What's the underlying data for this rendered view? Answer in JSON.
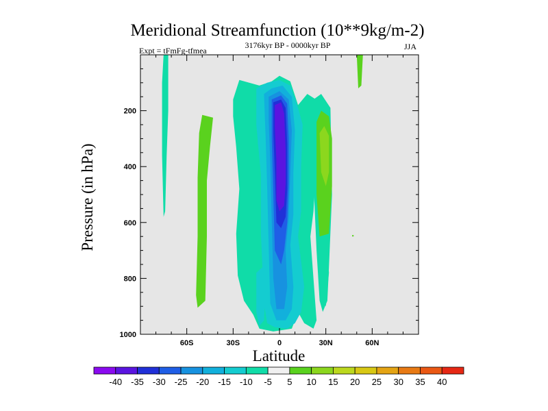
{
  "chart_data": {
    "type": "heatmap",
    "title": "Meridional Streamfunction (10**9kg/m-2)",
    "subtitle_left": "Expt = tFmFg-tfmea",
    "subtitle_center": "3176kyr BP - 0000kyr BP",
    "subtitle_right": "JJA",
    "xlabel": "Latitude",
    "ylabel": "Pressure (in hPa)",
    "xlim": [
      -90,
      90
    ],
    "ylim": [
      1000,
      0
    ],
    "x_ticks": [
      {
        "value": -60,
        "label": "60S"
      },
      {
        "value": -30,
        "label": "30S"
      },
      {
        "value": 0,
        "label": "0"
      },
      {
        "value": 30,
        "label": "30N"
      },
      {
        "value": 60,
        "label": "60N"
      }
    ],
    "y_ticks": [
      {
        "value": 200,
        "label": "200"
      },
      {
        "value": 400,
        "label": "400"
      },
      {
        "value": 600,
        "label": "600"
      },
      {
        "value": 800,
        "label": "800"
      },
      {
        "value": 1000,
        "label": "1000"
      }
    ],
    "background_color": "#e6e6e6",
    "colorbar": {
      "levels": [
        -40,
        -35,
        -30,
        -25,
        -20,
        -15,
        -10,
        -5,
        5,
        10,
        15,
        20,
        25,
        30,
        35,
        40
      ],
      "labels": [
        "-40",
        "-35",
        "-30",
        "-25",
        "-20",
        "-15",
        "-10",
        "-5",
        "5",
        "10",
        "15",
        "20",
        "25",
        "30",
        "35",
        "40"
      ],
      "colors": [
        "#8a0af0",
        "#5a14e0",
        "#2030d8",
        "#1f5ee6",
        "#1792e0",
        "#12b0dc",
        "#14ccd0",
        "#10dca8",
        "#f0f0f0",
        "#5ad21e",
        "#8cd71e",
        "#bcd81e",
        "#d8c814",
        "#e4a414",
        "#e87a14",
        "#ea5814",
        "#e62814"
      ]
    },
    "regions": [
      {
        "name": "sh-highlat-teal",
        "fill": 7,
        "points": [
          [
            -75,
            0
          ],
          [
            -72,
            0
          ],
          [
            -72,
            200
          ],
          [
            -73,
            360
          ],
          [
            -74,
            560
          ],
          [
            -75,
            580
          ],
          [
            -76,
            360
          ],
          [
            -76,
            100
          ]
        ]
      },
      {
        "name": "sh-midlat-green",
        "fill": 9,
        "points": [
          [
            -50,
            215
          ],
          [
            -43,
            225
          ],
          [
            -45,
            330
          ],
          [
            -47,
            450
          ],
          [
            -47,
            650
          ],
          [
            -48,
            880
          ],
          [
            -53,
            905
          ],
          [
            -54,
            860
          ],
          [
            -53,
            650
          ],
          [
            -53,
            440
          ],
          [
            -52,
            280
          ]
        ]
      },
      {
        "name": "tropical-teal-band",
        "fill": 7,
        "points": [
          [
            -30,
            160
          ],
          [
            -26,
            90
          ],
          [
            -13,
            110
          ],
          [
            -5,
            95
          ],
          [
            0,
            75
          ],
          [
            7,
            95
          ],
          [
            12,
            180
          ],
          [
            18,
            140
          ],
          [
            25,
            165
          ],
          [
            24,
            380
          ],
          [
            22,
            560
          ],
          [
            20,
            650
          ],
          [
            24,
            950
          ],
          [
            22,
            980
          ],
          [
            16,
            960
          ],
          [
            12,
            920
          ],
          [
            8,
            980
          ],
          [
            -4,
            990
          ],
          [
            -13,
            980
          ],
          [
            -17,
            930
          ],
          [
            -23,
            880
          ],
          [
            -27,
            790
          ],
          [
            -28,
            640
          ],
          [
            -26,
            480
          ],
          [
            -28,
            330
          ],
          [
            -30,
            220
          ]
        ]
      },
      {
        "name": "tropical-cyan",
        "fill": 6,
        "points": [
          [
            -15,
            120
          ],
          [
            -8,
            100
          ],
          [
            0,
            90
          ],
          [
            7,
            110
          ],
          [
            12,
            190
          ],
          [
            15,
            250
          ],
          [
            14,
            400
          ],
          [
            14,
            560
          ],
          [
            12,
            650
          ],
          [
            16,
            830
          ],
          [
            14,
            920
          ],
          [
            10,
            960
          ],
          [
            5,
            980
          ],
          [
            -3,
            975
          ],
          [
            -8,
            960
          ],
          [
            -10,
            890
          ],
          [
            -12,
            640
          ],
          [
            -12,
            430
          ],
          [
            -15,
            250
          ]
        ]
      },
      {
        "name": "tropical-blue-1",
        "fill": 5,
        "points": [
          [
            -10,
            140
          ],
          [
            -5,
            120
          ],
          [
            2,
            110
          ],
          [
            8,
            150
          ],
          [
            10,
            270
          ],
          [
            9,
            420
          ],
          [
            9,
            570
          ],
          [
            7,
            680
          ],
          [
            9,
            830
          ],
          [
            8,
            910
          ],
          [
            4,
            950
          ],
          [
            -2,
            950
          ],
          [
            -6,
            890
          ],
          [
            -7,
            680
          ],
          [
            -8,
            470
          ],
          [
            -9,
            290
          ]
        ]
      },
      {
        "name": "tropical-blue-2",
        "fill": 4,
        "points": [
          [
            -7,
            150
          ],
          [
            0,
            130
          ],
          [
            6,
            160
          ],
          [
            8,
            270
          ],
          [
            7,
            420
          ],
          [
            6,
            580
          ],
          [
            4,
            700
          ],
          [
            5,
            830
          ],
          [
            3,
            910
          ],
          [
            -2,
            910
          ],
          [
            -4,
            800
          ],
          [
            -5,
            590
          ],
          [
            -6,
            380
          ],
          [
            -7,
            230
          ]
        ]
      },
      {
        "name": "tropical-blue-3",
        "fill": 3,
        "points": [
          [
            -5,
            160
          ],
          [
            1,
            145
          ],
          [
            5,
            175
          ],
          [
            6,
            300
          ],
          [
            6,
            460
          ],
          [
            5,
            600
          ],
          [
            3,
            700
          ],
          [
            1,
            750
          ],
          [
            -3,
            700
          ],
          [
            -4,
            500
          ],
          [
            -5,
            300
          ]
        ]
      },
      {
        "name": "tropical-violet",
        "fill": 2,
        "points": [
          [
            -4,
            170
          ],
          [
            1,
            160
          ],
          [
            4,
            190
          ],
          [
            5,
            320
          ],
          [
            5,
            480
          ],
          [
            4,
            580
          ],
          [
            1,
            620
          ],
          [
            -2,
            600
          ],
          [
            -3,
            420
          ],
          [
            -4,
            280
          ]
        ]
      },
      {
        "name": "tropical-purple",
        "fill": 1,
        "points": [
          [
            -3,
            180
          ],
          [
            1,
            170
          ],
          [
            3,
            210
          ],
          [
            4,
            340
          ],
          [
            4,
            460
          ],
          [
            3,
            540
          ],
          [
            0,
            560
          ],
          [
            -2,
            520
          ],
          [
            -2,
            380
          ],
          [
            -3,
            260
          ]
        ]
      },
      {
        "name": "sh-subtropic-cyan",
        "fill": 6,
        "points": [
          [
            -15,
            780
          ],
          [
            -11,
            760
          ],
          [
            -9,
            850
          ],
          [
            -10,
            950
          ],
          [
            -13,
            970
          ],
          [
            -15,
            920
          ]
        ]
      },
      {
        "name": "nh-teal-column",
        "fill": 7,
        "points": [
          [
            22,
            160
          ],
          [
            27,
            140
          ],
          [
            33,
            190
          ],
          [
            34,
            500
          ],
          [
            32,
            760
          ],
          [
            31,
            880
          ],
          [
            28,
            920
          ],
          [
            26,
            880
          ],
          [
            24,
            700
          ],
          [
            22,
            450
          ]
        ]
      },
      {
        "name": "nh-subtrop-green",
        "fill": 9,
        "points": [
          [
            24,
            240
          ],
          [
            27,
            200
          ],
          [
            32,
            220
          ],
          [
            34,
            300
          ],
          [
            34,
            470
          ],
          [
            32,
            640
          ],
          [
            26,
            650
          ],
          [
            24,
            500
          ]
        ]
      },
      {
        "name": "nh-subtrop-yellowgreen",
        "fill": 10,
        "points": [
          [
            26,
            280
          ],
          [
            29,
            255
          ],
          [
            32,
            290
          ],
          [
            32,
            420
          ],
          [
            30,
            470
          ],
          [
            27,
            420
          ]
        ]
      },
      {
        "name": "nh-column-teal",
        "fill": 7,
        "points": [
          [
            28,
            700
          ],
          [
            31,
            680
          ],
          [
            32,
            780
          ],
          [
            30,
            900
          ],
          [
            28,
            870
          ]
        ]
      },
      {
        "name": "sh-small-cyan",
        "fill": 6,
        "points": [
          [
            -14,
            260
          ],
          [
            -13,
            260
          ],
          [
            -13,
            330
          ],
          [
            -14,
            320
          ]
        ]
      },
      {
        "name": "nh-highlat-green",
        "fill": 9,
        "points": [
          [
            50,
            0
          ],
          [
            54,
            0
          ],
          [
            53,
            110
          ],
          [
            51,
            120
          ]
        ]
      },
      {
        "name": "nh-dot-green",
        "fill": 9,
        "points": [
          [
            47,
            645
          ],
          [
            48,
            645
          ],
          [
            48,
            650
          ],
          [
            47,
            650
          ]
        ]
      }
    ]
  }
}
